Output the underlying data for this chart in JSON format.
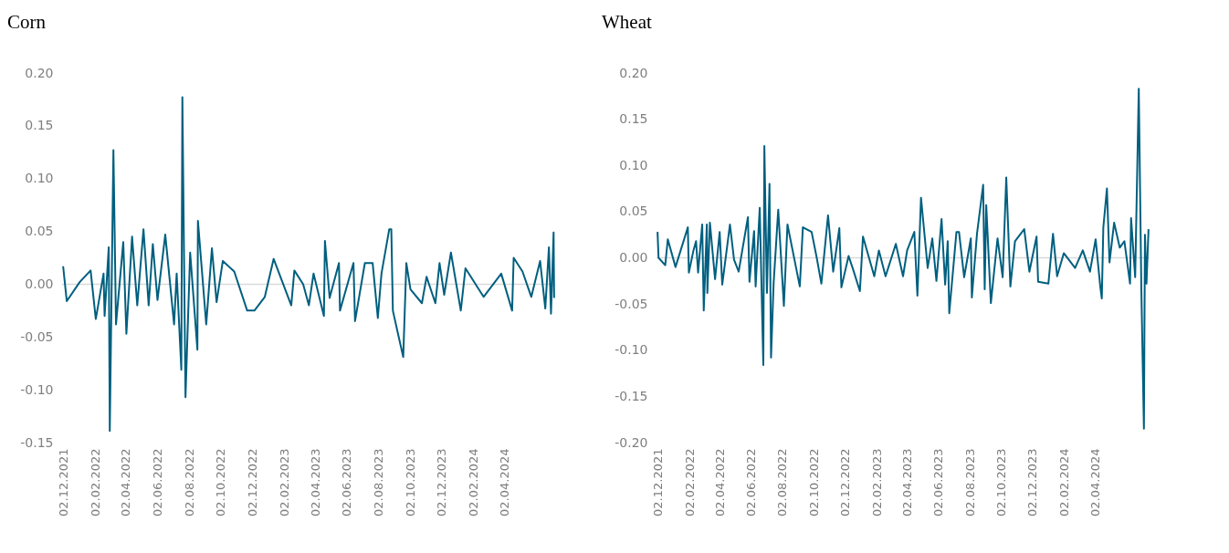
{
  "chart_data": [
    {
      "type": "line",
      "title": "Corn",
      "xlim": [
        "2021-11-30",
        "2024-07-08"
      ],
      "ylim": [
        -0.15,
        0.2
      ],
      "yticks": [
        {
          "value": 0.2,
          "label": "0.20"
        },
        {
          "value": 0.15,
          "label": "0.15"
        },
        {
          "value": 0.1,
          "label": "0.10"
        },
        {
          "value": 0.05,
          "label": "0.05"
        },
        {
          "value": 0,
          "label": "0.00"
        },
        {
          "value": -0.05,
          "label": "-0.05"
        },
        {
          "value": -0.1,
          "label": "-0.10"
        },
        {
          "value": -0.15,
          "label": "-0.15"
        }
      ],
      "xticks": [
        {
          "value": "2021-12-02",
          "label": "02.12.2021"
        },
        {
          "value": "2022-02-02",
          "label": "02.02.2022"
        },
        {
          "value": "2022-04-02",
          "label": "02.04.2022"
        },
        {
          "value": "2022-06-02",
          "label": "02.06.2022"
        },
        {
          "value": "2022-08-02",
          "label": "02.08.2022"
        },
        {
          "value": "2022-10-02",
          "label": "02.10.2022"
        },
        {
          "value": "2022-12-02",
          "label": "02.12.2022"
        },
        {
          "value": "2023-02-02",
          "label": "02.02.2023"
        },
        {
          "value": "2023-04-02",
          "label": "02.04.2023"
        },
        {
          "value": "2023-06-02",
          "label": "02.06.2023"
        },
        {
          "value": "2023-08-02",
          "label": "02.08.2023"
        },
        {
          "value": "2023-10-02",
          "label": "02.10.2023"
        },
        {
          "value": "2023-12-02",
          "label": "02.12.2023"
        },
        {
          "value": "2024-02-02",
          "label": "02.02.2024"
        },
        {
          "value": "2024-04-02",
          "label": "02.04.2024"
        }
      ],
      "grid": false,
      "ref_lines": [
        {
          "axis": "y",
          "value": 0,
          "color": "#d9d9d9"
        }
      ],
      "series": [
        {
          "color": "#005f7f",
          "x": [
            "2021-12-02",
            "2021-12-09",
            "2022-01-03",
            "2022-01-24",
            "2022-02-03",
            "2022-02-18",
            "2022-02-20",
            "2022-02-28",
            "2022-03-02",
            "2022-03-09",
            "2022-03-14",
            "2022-03-28",
            "2022-04-03",
            "2022-04-14",
            "2022-04-24",
            "2022-05-06",
            "2022-05-16",
            "2022-05-24",
            "2022-06-02",
            "2022-06-17",
            "2022-07-04",
            "2022-07-09",
            "2022-07-18",
            "2022-07-20",
            "2022-07-26",
            "2022-08-04",
            "2022-08-18",
            "2022-08-19",
            "2022-09-04",
            "2022-09-15",
            "2022-09-24",
            "2022-10-06",
            "2022-10-28",
            "2022-11-22",
            "2022-12-06",
            "2022-12-26",
            "2023-01-12",
            "2023-02-15",
            "2023-02-21",
            "2023-03-10",
            "2023-03-21",
            "2023-03-30",
            "2023-04-19",
            "2023-04-21",
            "2023-04-30",
            "2023-05-18",
            "2023-05-20",
            "2023-06-15",
            "2023-06-18",
            "2023-07-07",
            "2023-07-22",
            "2023-08-01",
            "2023-08-08",
            "2023-08-23",
            "2023-08-27",
            "2023-08-30",
            "2023-09-08",
            "2023-09-19",
            "2023-09-25",
            "2023-10-03",
            "2023-10-25",
            "2023-11-03",
            "2023-11-20",
            "2023-11-28",
            "2023-12-07",
            "2023-12-20",
            "2024-01-08",
            "2024-01-17",
            "2024-02-21",
            "2024-03-26",
            "2024-04-16",
            "2024-04-19",
            "2024-05-06",
            "2024-05-23",
            "2024-06-09",
            "2024-06-19",
            "2024-06-26",
            "2024-06-30",
            "2024-07-05",
            "2024-07-06"
          ],
          "values": [
            0.017,
            -0.016,
            0.002,
            0.013,
            -0.033,
            0.01,
            -0.03,
            0.035,
            -0.139,
            0.127,
            -0.038,
            0.04,
            -0.047,
            0.045,
            -0.02,
            0.052,
            -0.02,
            0.038,
            -0.015,
            0.047,
            -0.038,
            0.01,
            -0.081,
            0.177,
            -0.107,
            0.03,
            -0.062,
            0.06,
            -0.038,
            0.034,
            -0.017,
            0.022,
            0.012,
            -0.025,
            -0.025,
            -0.012,
            0.024,
            -0.02,
            0.013,
            0.0,
            -0.02,
            0.01,
            -0.03,
            0.041,
            -0.013,
            0.02,
            -0.025,
            0.02,
            -0.035,
            0.02,
            0.02,
            -0.032,
            0.01,
            0.052,
            0.052,
            -0.025,
            -0.045,
            -0.069,
            0.02,
            -0.005,
            -0.018,
            0.007,
            -0.018,
            0.02,
            -0.01,
            0.03,
            -0.025,
            0.015,
            -0.012,
            0.01,
            -0.025,
            0.025,
            0.012,
            -0.012,
            0.022,
            -0.023,
            0.035,
            -0.028,
            0.049,
            -0.013
          ]
        }
      ]
    },
    {
      "type": "line",
      "title": "Wheat",
      "xlim": [
        "2021-11-30",
        "2024-07-17"
      ],
      "ylim": [
        -0.2,
        0.2
      ],
      "yticks": [
        {
          "value": 0.2,
          "label": "0.20"
        },
        {
          "value": 0.15,
          "label": "0.15"
        },
        {
          "value": 0.1,
          "label": "0.10"
        },
        {
          "value": 0.05,
          "label": "0.05"
        },
        {
          "value": 0,
          "label": "0.00"
        },
        {
          "value": -0.05,
          "label": "-0.05"
        },
        {
          "value": -0.1,
          "label": "-0.10"
        },
        {
          "value": -0.15,
          "label": "-0.15"
        },
        {
          "value": -0.2,
          "label": "-0.20"
        }
      ],
      "xticks": [
        {
          "value": "2021-12-02",
          "label": "02.12.2021"
        },
        {
          "value": "2022-02-02",
          "label": "02.02.2022"
        },
        {
          "value": "2022-04-02",
          "label": "02.04.2022"
        },
        {
          "value": "2022-06-02",
          "label": "02.06.2022"
        },
        {
          "value": "2022-08-02",
          "label": "02.08.2022"
        },
        {
          "value": "2022-10-02",
          "label": "02.10.2022"
        },
        {
          "value": "2022-12-02",
          "label": "02.12.2022"
        },
        {
          "value": "2023-02-02",
          "label": "02.02.2023"
        },
        {
          "value": "2023-04-02",
          "label": "02.04.2023"
        },
        {
          "value": "2023-06-02",
          "label": "02.06.2023"
        },
        {
          "value": "2023-08-02",
          "label": "02.08.2023"
        },
        {
          "value": "2023-10-02",
          "label": "02.10.2023"
        },
        {
          "value": "2023-12-02",
          "label": "02.12.2023"
        },
        {
          "value": "2024-02-02",
          "label": "02.02.2024"
        },
        {
          "value": "2024-04-02",
          "label": "02.04.2024"
        }
      ],
      "grid": false,
      "ref_lines": [
        {
          "axis": "y",
          "value": 0,
          "color": "#d9d9d9"
        }
      ],
      "series": [
        {
          "color": "#005f7f",
          "x": [
            "2021-12-02",
            "2021-12-04",
            "2021-12-17",
            "2021-12-22",
            "2022-01-06",
            "2022-01-30",
            "2022-02-01",
            "2022-02-10",
            "2022-02-15",
            "2022-02-19",
            "2022-02-27",
            "2022-03-02",
            "2022-03-08",
            "2022-03-09",
            "2022-03-14",
            "2022-03-24",
            "2022-04-02",
            "2022-04-07",
            "2022-04-22",
            "2022-04-30",
            "2022-05-09",
            "2022-05-27",
            "2022-05-30",
            "2022-06-08",
            "2022-06-11",
            "2022-06-19",
            "2022-06-26",
            "2022-06-28",
            "2022-07-03",
            "2022-07-08",
            "2022-07-11",
            "2022-07-16",
            "2022-07-25",
            "2022-08-05",
            "2022-08-12",
            "2022-09-05",
            "2022-09-11",
            "2022-09-28",
            "2022-10-08",
            "2022-10-17",
            "2022-10-30",
            "2022-11-09",
            "2022-11-21",
            "2022-11-25",
            "2022-12-09",
            "2022-12-18",
            "2022-12-31",
            "2023-01-06",
            "2023-01-28",
            "2023-02-06",
            "2023-02-19",
            "2023-03-11",
            "2023-03-25",
            "2023-04-02",
            "2023-04-16",
            "2023-04-22",
            "2023-04-29",
            "2023-05-12",
            "2023-05-21",
            "2023-05-29",
            "2023-06-08",
            "2023-06-15",
            "2023-06-20",
            "2023-06-23",
            "2023-07-07",
            "2023-07-12",
            "2023-07-22",
            "2023-08-04",
            "2023-08-06",
            "2023-08-16",
            "2023-08-28",
            "2023-08-31",
            "2023-09-03",
            "2023-09-12",
            "2023-09-25",
            "2023-10-05",
            "2023-10-12",
            "2023-10-20",
            "2023-10-29",
            "2023-11-16",
            "2023-11-26",
            "2023-12-10",
            "2023-12-13",
            "2024-01-02",
            "2024-01-11",
            "2024-01-19",
            "2024-02-01",
            "2024-02-23",
            "2024-03-09",
            "2024-03-23",
            "2024-04-03",
            "2024-04-12",
            "2024-04-15",
            "2024-04-18",
            "2024-04-25",
            "2024-04-30",
            "2024-05-09",
            "2024-05-20",
            "2024-05-29",
            "2024-06-09",
            "2024-06-11",
            "2024-06-19",
            "2024-06-26",
            "2024-07-01",
            "2024-07-06",
            "2024-07-08",
            "2024-07-11",
            "2024-07-15"
          ],
          "values": [
            0.028,
            0.0,
            -0.008,
            0.02,
            -0.01,
            0.033,
            -0.016,
            0.008,
            0.018,
            -0.016,
            0.036,
            -0.057,
            0.036,
            -0.038,
            0.038,
            -0.023,
            0.028,
            -0.029,
            0.036,
            -0.002,
            -0.015,
            0.044,
            -0.026,
            0.029,
            -0.031,
            0.054,
            -0.116,
            0.121,
            -0.038,
            0.08,
            -0.108,
            -0.028,
            0.052,
            -0.052,
            0.036,
            -0.031,
            0.033,
            0.028,
            0.0,
            -0.028,
            0.046,
            -0.015,
            0.032,
            -0.032,
            0.002,
            -0.013,
            -0.036,
            0.023,
            -0.02,
            0.008,
            -0.02,
            0.015,
            -0.02,
            0.008,
            0.028,
            -0.041,
            0.065,
            -0.011,
            0.021,
            -0.025,
            0.042,
            -0.029,
            0.018,
            -0.06,
            0.028,
            0.028,
            -0.021,
            0.021,
            -0.043,
            0.026,
            0.079,
            -0.034,
            0.057,
            -0.049,
            0.021,
            -0.021,
            0.087,
            -0.031,
            0.018,
            0.031,
            -0.015,
            0.023,
            -0.026,
            -0.028,
            0.026,
            -0.02,
            0.005,
            -0.011,
            0.008,
            -0.015,
            0.02,
            -0.031,
            -0.044,
            0.033,
            0.075,
            -0.005,
            0.038,
            0.011,
            0.018,
            -0.028,
            0.043,
            -0.021,
            0.183,
            -0.034,
            -0.185,
            0.025,
            -0.028,
            0.031
          ]
        }
      ]
    }
  ]
}
